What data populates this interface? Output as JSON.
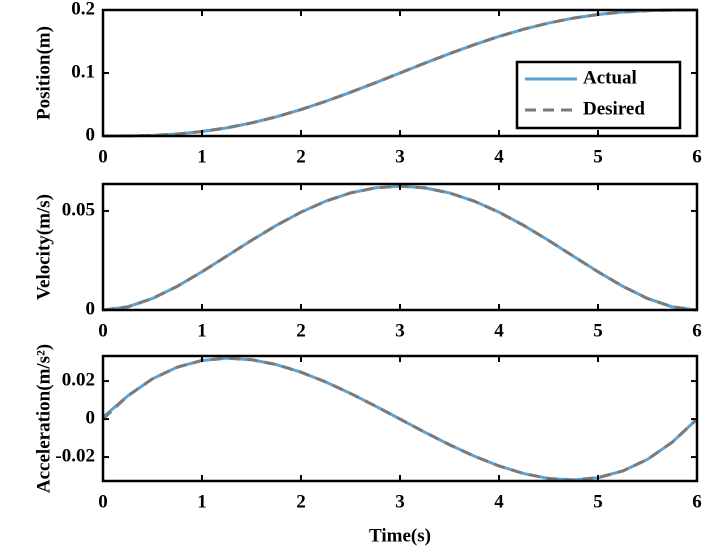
{
  "chart_data": [
    {
      "type": "line",
      "ylabel": "Position(m)",
      "legend": "lower right",
      "x": [
        0,
        0.25,
        0.5,
        0.75,
        1,
        1.25,
        1.5,
        1.75,
        2,
        2.25,
        2.5,
        2.75,
        3,
        3.25,
        3.5,
        3.75,
        4,
        4.25,
        4.5,
        4.75,
        5,
        5.25,
        5.5,
        5.75,
        6
      ],
      "xlim": [
        0,
        6
      ],
      "xticks": [
        0,
        1,
        2,
        3,
        4,
        5,
        6
      ],
      "ylim": [
        0,
        0.2
      ],
      "yticks": [
        0,
        0.1,
        0.2
      ],
      "series": [
        {
          "name": "Actual",
          "color": "#5ba3d4",
          "linestyle": "solid",
          "values": [
            0,
            0.00014,
            0.00102,
            0.00321,
            0.0071,
            0.0129,
            0.0207,
            0.03045,
            0.04198,
            0.05504,
            0.06932,
            0.08445,
            0.1,
            0.11555,
            0.13068,
            0.14496,
            0.15802,
            0.16955,
            0.1793,
            0.1871,
            0.1929,
            0.19679,
            0.19898,
            0.19986,
            0.2
          ]
        },
        {
          "name": "Desired",
          "color": "#7a7a7a",
          "linestyle": "dashed",
          "values": [
            0,
            0.00014,
            0.00102,
            0.00321,
            0.0071,
            0.0129,
            0.0207,
            0.03045,
            0.04198,
            0.05504,
            0.06932,
            0.08445,
            0.1,
            0.11555,
            0.13068,
            0.14496,
            0.15802,
            0.16955,
            0.1793,
            0.1871,
            0.1929,
            0.19679,
            0.19898,
            0.19986,
            0.2
          ]
        }
      ]
    },
    {
      "type": "line",
      "ylabel": "Velocity(m/s)",
      "x": [
        0,
        0.25,
        0.5,
        0.75,
        1,
        1.25,
        1.5,
        1.75,
        2,
        2.25,
        2.5,
        2.75,
        3,
        3.25,
        3.5,
        3.75,
        4,
        4.25,
        4.5,
        4.75,
        5,
        5.25,
        5.5,
        5.75,
        6
      ],
      "xlim": [
        0,
        6
      ],
      "xticks": [
        0,
        1,
        2,
        3,
        4,
        5,
        6
      ],
      "ylim": [
        0,
        0.0636
      ],
      "yticks": [
        0,
        0.05
      ],
      "series": [
        {
          "name": "Actual",
          "color": "#5ba3d4",
          "linestyle": "solid",
          "values": [
            0,
            0.00159,
            0.00584,
            0.01196,
            0.01929,
            0.0272,
            0.03516,
            0.04268,
            0.04938,
            0.05493,
            0.05908,
            0.06164,
            0.0625,
            0.06164,
            0.05908,
            0.05493,
            0.04938,
            0.04268,
            0.03516,
            0.0272,
            0.01929,
            0.01196,
            0.00584,
            0.00159,
            0
          ]
        },
        {
          "name": "Desired",
          "color": "#7a7a7a",
          "linestyle": "dashed",
          "values": [
            0,
            0.00159,
            0.00584,
            0.01196,
            0.01929,
            0.0272,
            0.03516,
            0.04268,
            0.04938,
            0.05493,
            0.05908,
            0.06164,
            0.0625,
            0.06164,
            0.05908,
            0.05493,
            0.04938,
            0.04268,
            0.03516,
            0.0272,
            0.01929,
            0.01196,
            0.00584,
            0.00159,
            0
          ]
        }
      ]
    },
    {
      "type": "line",
      "ylabel": "Acceleration(m/s²)",
      "xlabel": "Time(s)",
      "x": [
        0,
        0.25,
        0.5,
        0.75,
        1,
        1.25,
        1.5,
        1.75,
        2,
        2.25,
        2.5,
        2.75,
        3,
        3.25,
        3.5,
        3.75,
        4,
        4.25,
        4.5,
        4.75,
        5,
        5.25,
        5.5,
        5.75,
        6
      ],
      "xlim": [
        0,
        6
      ],
      "xticks": [
        0,
        1,
        2,
        3,
        4,
        5,
        6
      ],
      "ylim": [
        -0.0326,
        0.0332
      ],
      "yticks": [
        -0.02,
        0,
        0.02
      ],
      "series": [
        {
          "name": "Actual",
          "color": "#5ba3d4",
          "linestyle": "solid",
          "values": [
            0.001,
            0.0122,
            0.02122,
            0.02734,
            0.03086,
            0.03207,
            0.03125,
            0.02869,
            0.02469,
            0.01953,
            0.0135,
            0.0069,
            0,
            -0.0069,
            -0.0135,
            -0.01953,
            -0.02469,
            -0.02869,
            -0.03125,
            -0.03207,
            -0.03086,
            -0.02734,
            -0.02122,
            -0.0122,
            0
          ]
        },
        {
          "name": "Desired",
          "color": "#7a7a7a",
          "linestyle": "dashed",
          "values": [
            0,
            0.0122,
            0.02122,
            0.02734,
            0.03086,
            0.03207,
            0.03125,
            0.02869,
            0.02469,
            0.01953,
            0.0135,
            0.0069,
            0,
            -0.0069,
            -0.0135,
            -0.01953,
            -0.02469,
            -0.02869,
            -0.03125,
            -0.03207,
            -0.03086,
            -0.02734,
            -0.02122,
            -0.0122,
            0
          ]
        }
      ]
    }
  ]
}
